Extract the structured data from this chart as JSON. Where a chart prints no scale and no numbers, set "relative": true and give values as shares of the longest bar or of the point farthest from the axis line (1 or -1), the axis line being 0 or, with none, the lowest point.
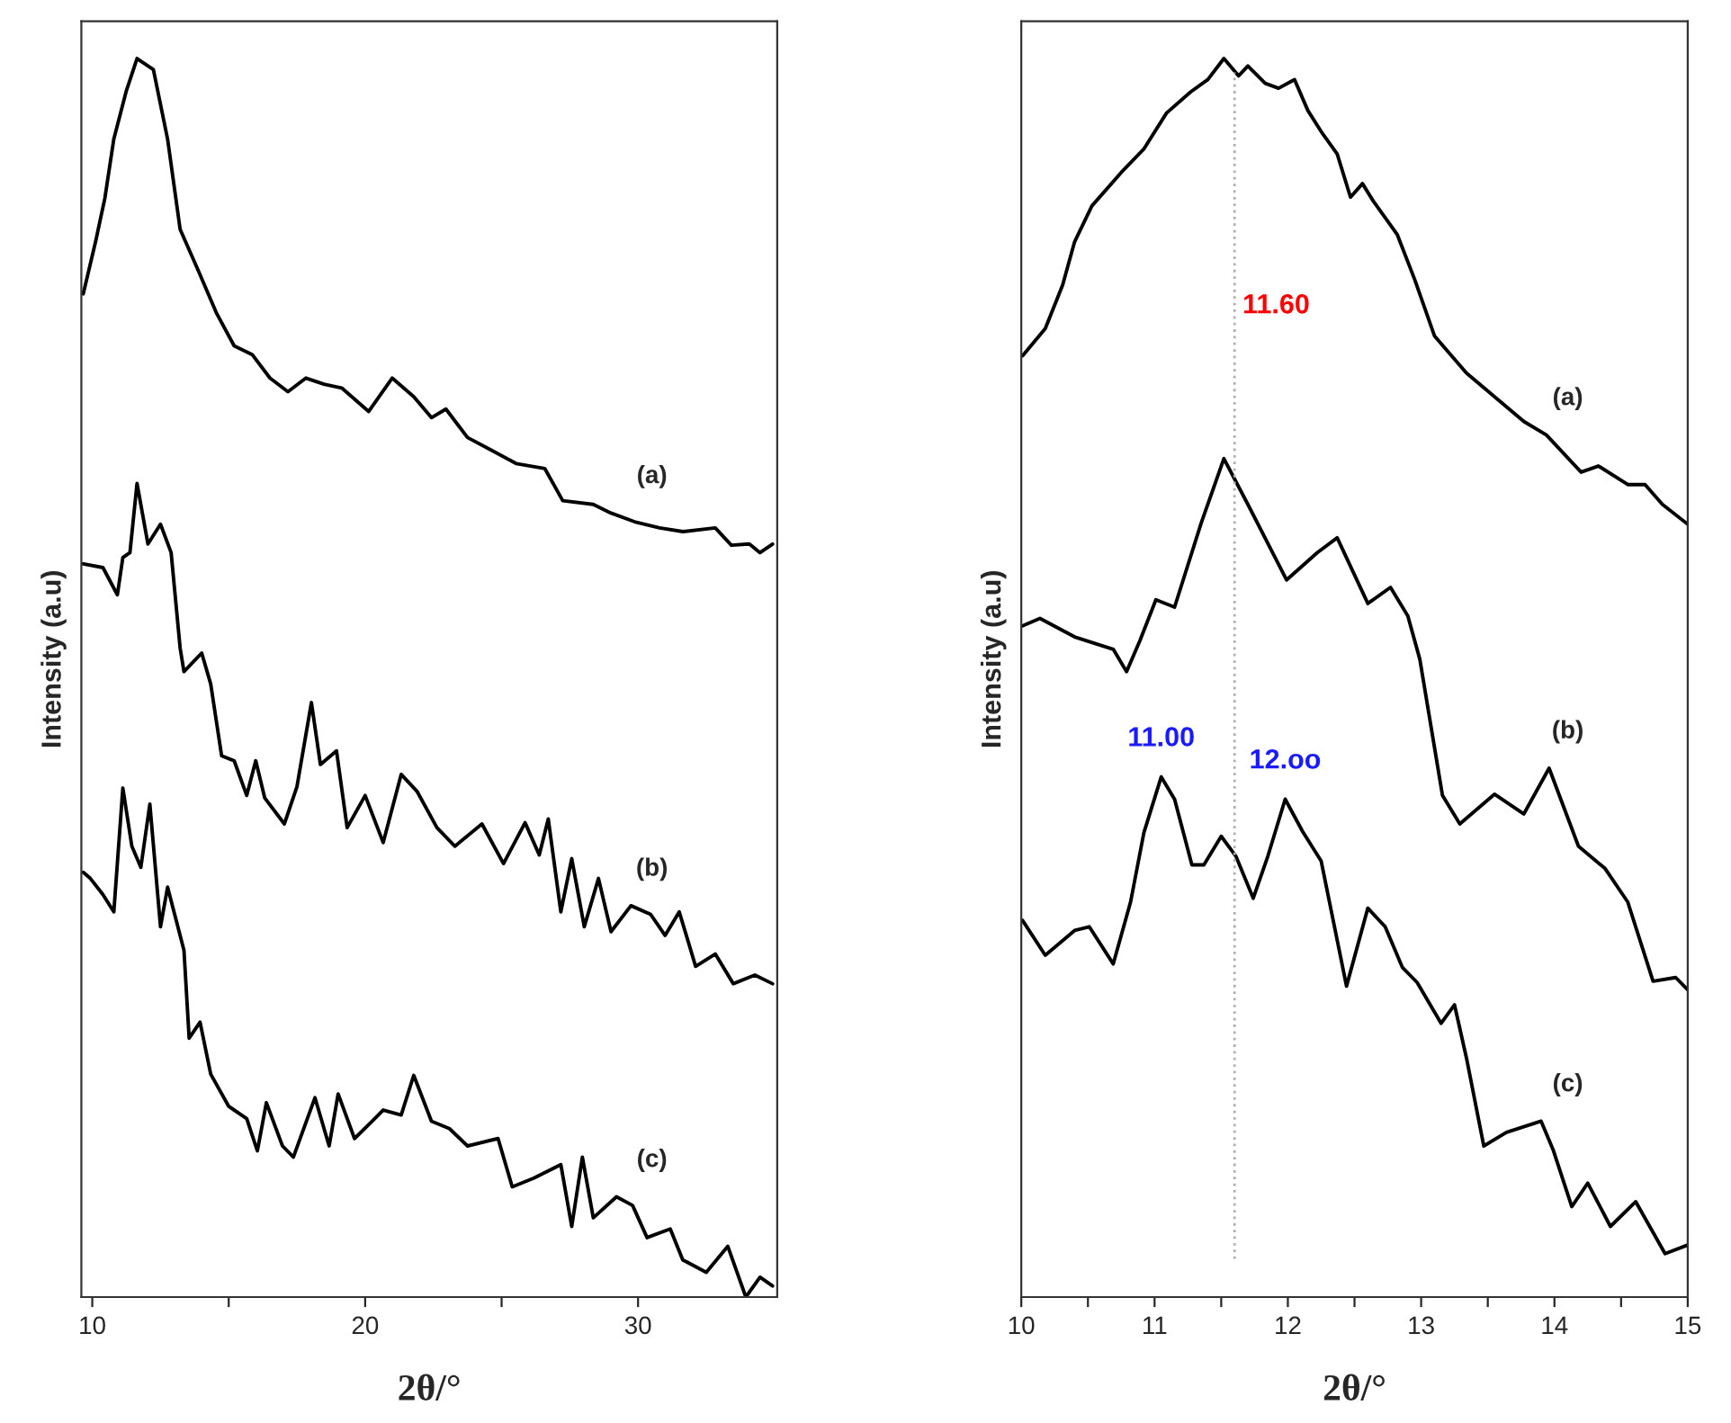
{
  "chart_data": [
    {
      "type": "line",
      "relative": true,
      "xlabel": "2θ/°",
      "ylabel": "Intensity (a.u)",
      "xlim": [
        9.6,
        35.1
      ],
      "xticks": [
        10,
        {
          "value": 15,
          "label": null
        },
        20,
        {
          "value": 25,
          "label": null
        },
        30
      ],
      "tick_labels": "x",
      "grid": false,
      "legend": false,
      "marker": "none",
      "line_style": "solid",
      "series": [
        {
          "name": "(a)",
          "color": "#000000",
          "x": [
            9.67,
            10.13,
            10.46,
            10.79,
            11.25,
            11.64,
            12.24,
            12.76,
            13.22,
            13.88,
            14.54,
            15.2,
            15.86,
            16.51,
            17.17,
            17.83,
            18.49,
            19.14,
            20.13,
            20.99,
            21.78,
            22.43,
            22.96,
            23.75,
            24.61,
            25.53,
            26.58,
            27.24,
            28.36,
            29.01,
            29.87,
            30.79,
            31.64,
            32.83,
            33.42,
            34.08,
            34.47,
            34.93
          ],
          "values": [
            0.81,
            0.853,
            0.887,
            0.935,
            0.974,
            1.0,
            0.991,
            0.935,
            0.862,
            0.829,
            0.795,
            0.768,
            0.761,
            0.742,
            0.731,
            0.742,
            0.737,
            0.734,
            0.715,
            0.742,
            0.727,
            0.71,
            0.717,
            0.694,
            0.684,
            0.673,
            0.669,
            0.643,
            0.64,
            0.633,
            0.626,
            0.621,
            0.618,
            0.621,
            0.607,
            0.608,
            0.601,
            0.608
          ]
        },
        {
          "name": "(b)",
          "color": "#000000",
          "x": [
            9.67,
            10.39,
            10.92,
            11.12,
            11.38,
            11.64,
            12.04,
            12.5,
            12.89,
            13.22,
            13.36,
            14.01,
            14.34,
            14.74,
            15.2,
            15.66,
            15.99,
            16.32,
            17.04,
            17.5,
            18.03,
            18.36,
            18.95,
            19.34,
            20.0,
            20.66,
            21.32,
            21.91,
            22.63,
            23.29,
            24.28,
            25.07,
            25.86,
            26.38,
            26.71,
            27.17,
            27.57,
            28.03,
            28.55,
            29.01,
            29.74,
            30.46,
            30.99,
            31.51,
            32.11,
            32.83,
            33.49,
            34.28,
            34.93
          ],
          "values": [
            0.592,
            0.589,
            0.567,
            0.597,
            0.601,
            0.657,
            0.608,
            0.624,
            0.601,
            0.524,
            0.505,
            0.52,
            0.495,
            0.437,
            0.433,
            0.405,
            0.433,
            0.403,
            0.382,
            0.412,
            0.48,
            0.43,
            0.441,
            0.379,
            0.405,
            0.367,
            0.422,
            0.408,
            0.379,
            0.364,
            0.382,
            0.35,
            0.383,
            0.357,
            0.386,
            0.311,
            0.354,
            0.299,
            0.338,
            0.295,
            0.316,
            0.309,
            0.292,
            0.311,
            0.267,
            0.277,
            0.253,
            0.26,
            0.253
          ]
        },
        {
          "name": "(c)",
          "color": "#000000",
          "x": [
            9.67,
            9.93,
            10.39,
            10.79,
            11.12,
            11.45,
            11.78,
            12.11,
            12.5,
            12.76,
            13.36,
            13.55,
            13.95,
            14.34,
            15.0,
            15.66,
            16.05,
            16.38,
            16.97,
            17.37,
            18.16,
            18.68,
            19.01,
            19.61,
            20.26,
            20.66,
            21.32,
            21.78,
            22.43,
            23.09,
            23.75,
            24.87,
            25.39,
            26.18,
            27.17,
            27.57,
            27.96,
            28.36,
            29.21,
            29.8,
            30.33,
            31.18,
            31.64,
            32.5,
            33.29,
            33.95,
            34.47,
            34.93
          ],
          "values": [
            0.343,
            0.338,
            0.325,
            0.311,
            0.411,
            0.364,
            0.347,
            0.398,
            0.299,
            0.331,
            0.28,
            0.209,
            0.222,
            0.18,
            0.154,
            0.144,
            0.118,
            0.157,
            0.122,
            0.113,
            0.161,
            0.122,
            0.164,
            0.128,
            0.142,
            0.151,
            0.147,
            0.179,
            0.142,
            0.136,
            0.122,
            0.128,
            0.089,
            0.096,
            0.107,
            0.057,
            0.113,
            0.064,
            0.081,
            0.074,
            0.048,
            0.055,
            0.03,
            0.02,
            0.041,
            0.0,
            0.016,
            0.009
          ]
        }
      ]
    },
    {
      "type": "line",
      "relative": true,
      "xlabel": "2θ/°",
      "ylabel": "Intensity (a.u)",
      "xlim": [
        10,
        15
      ],
      "xticks": [
        10,
        {
          "value": 10.5,
          "label": null
        },
        11,
        {
          "value": 11.5,
          "label": null
        },
        12,
        {
          "value": 12.5,
          "label": null
        },
        13,
        {
          "value": 13.5,
          "label": null
        },
        14,
        {
          "value": 14.5,
          "label": null
        },
        15
      ],
      "tick_labels": "x",
      "grid": false,
      "legend": false,
      "marker": "none",
      "line_style": "solid",
      "ref_lines": [
        {
          "axis": "x",
          "value": 11.6,
          "label": "11.60",
          "color": "#b0b0b0",
          "line_style": "dotted"
        }
      ],
      "annotations": [
        {
          "text": "11.00",
          "x": 11.05,
          "y": 0.42
        },
        {
          "text": "12.oo",
          "x": 11.98,
          "y": 0.402
        }
      ],
      "series": [
        {
          "name": "(a)",
          "color": "#000000",
          "x": [
            10.01,
            10.18,
            10.31,
            10.4,
            10.53,
            10.75,
            10.92,
            11.09,
            11.27,
            11.4,
            11.52,
            11.63,
            11.7,
            11.83,
            11.93,
            12.05,
            12.15,
            12.25,
            12.37,
            12.47,
            12.56,
            12.64,
            12.82,
            12.95,
            13.1,
            13.34,
            13.55,
            13.77,
            13.94,
            14.2,
            14.33,
            14.55,
            14.68,
            14.81,
            15.0
          ],
          "values": [
            0.76,
            0.782,
            0.817,
            0.852,
            0.881,
            0.908,
            0.927,
            0.956,
            0.973,
            0.983,
            1.0,
            0.986,
            0.994,
            0.98,
            0.976,
            0.983,
            0.958,
            0.941,
            0.923,
            0.888,
            0.899,
            0.885,
            0.858,
            0.822,
            0.776,
            0.746,
            0.727,
            0.707,
            0.696,
            0.666,
            0.671,
            0.656,
            0.656,
            0.64,
            0.624
          ]
        },
        {
          "name": "(b)",
          "color": "#000000",
          "x": [
            10.01,
            10.14,
            10.4,
            10.69,
            10.79,
            10.89,
            11.01,
            11.15,
            11.35,
            11.52,
            11.7,
            11.99,
            12.22,
            12.37,
            12.6,
            12.77,
            12.9,
            12.99,
            13.16,
            13.29,
            13.55,
            13.77,
            13.96,
            14.18,
            14.38,
            14.55,
            14.74,
            14.91,
            15.0
          ],
          "values": [
            0.542,
            0.548,
            0.533,
            0.523,
            0.505,
            0.53,
            0.563,
            0.557,
            0.625,
            0.677,
            0.64,
            0.579,
            0.601,
            0.613,
            0.56,
            0.573,
            0.55,
            0.515,
            0.405,
            0.382,
            0.406,
            0.39,
            0.427,
            0.364,
            0.346,
            0.319,
            0.255,
            0.258,
            0.248
          ]
        },
        {
          "name": "(c)",
          "color": "#000000",
          "x": [
            10.01,
            10.18,
            10.4,
            10.51,
            10.69,
            10.82,
            10.92,
            11.05,
            11.15,
            11.28,
            11.37,
            11.5,
            11.61,
            11.74,
            11.85,
            11.98,
            12.11,
            12.25,
            12.44,
            12.6,
            12.73,
            12.86,
            12.97,
            13.15,
            13.25,
            13.34,
            13.47,
            13.64,
            13.9,
            13.99,
            14.13,
            14.25,
            14.42,
            14.61,
            14.83,
            15.0
          ],
          "values": [
            0.304,
            0.276,
            0.296,
            0.299,
            0.269,
            0.319,
            0.375,
            0.42,
            0.402,
            0.349,
            0.349,
            0.372,
            0.356,
            0.322,
            0.356,
            0.402,
            0.376,
            0.352,
            0.251,
            0.314,
            0.299,
            0.266,
            0.254,
            0.221,
            0.236,
            0.193,
            0.122,
            0.133,
            0.142,
            0.119,
            0.073,
            0.092,
            0.057,
            0.077,
            0.035,
            0.042
          ]
        }
      ]
    }
  ]
}
